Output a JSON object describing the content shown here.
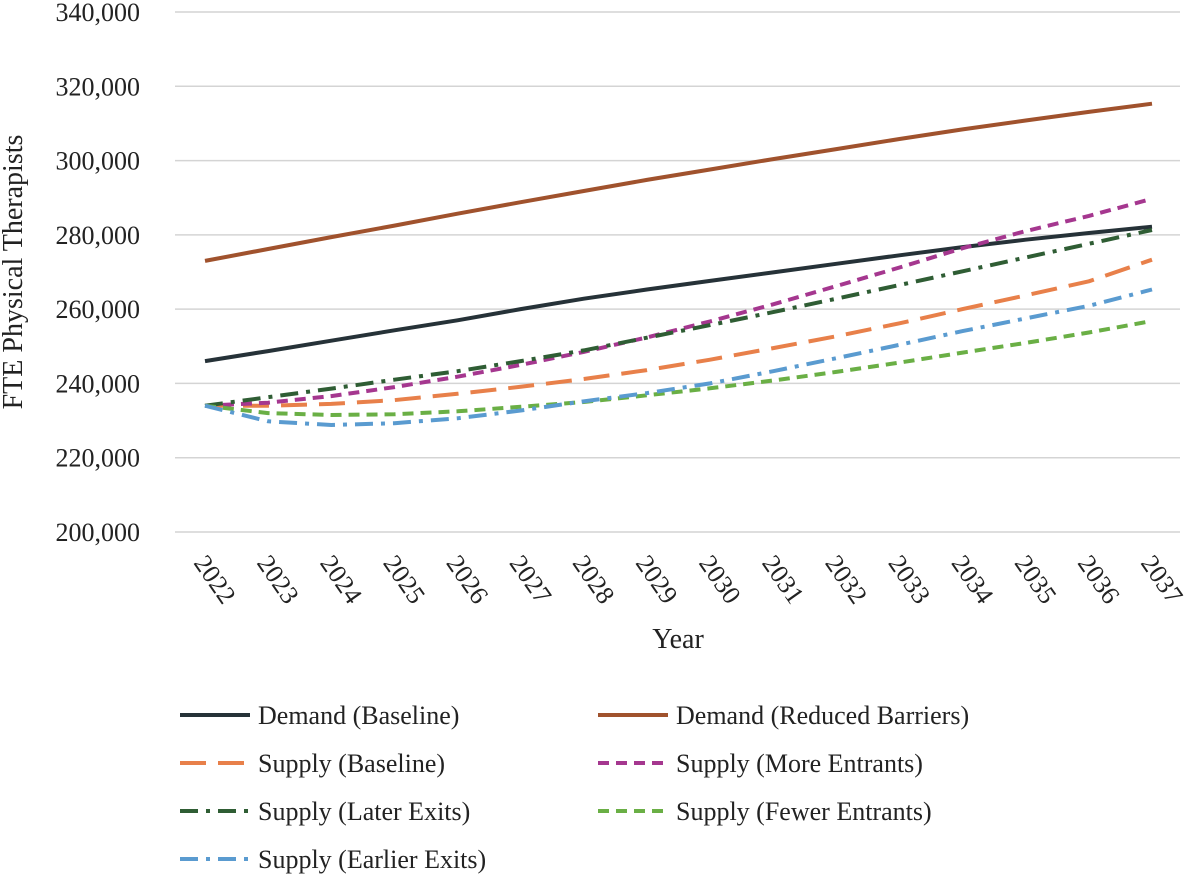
{
  "chart_data": {
    "type": "line",
    "title": "",
    "xlabel": "Year",
    "ylabel": "FTE Physical Therapists",
    "ylim": [
      200000,
      340000
    ],
    "y_ticks": [
      "200,000",
      "220,000",
      "240,000",
      "260,000",
      "280,000",
      "300,000",
      "320,000",
      "340,000"
    ],
    "y_tick_values": [
      200000,
      220000,
      240000,
      260000,
      280000,
      300000,
      320000,
      340000
    ],
    "grid": true,
    "legend_position": "bottom",
    "x": [
      "2022",
      "2023",
      "2024",
      "2025",
      "2026",
      "2027",
      "2028",
      "2029",
      "2030",
      "2031",
      "2032",
      "2033",
      "2034",
      "2035",
      "2036",
      "2037"
    ],
    "series": [
      {
        "name": "Demand (Baseline)",
        "color": "#263238",
        "dash": "solid",
        "values": [
          246000,
          248700,
          251500,
          254300,
          257000,
          260000,
          262800,
          265300,
          267600,
          269900,
          272200,
          274500,
          276700,
          278700,
          280500,
          282200
        ]
      },
      {
        "name": "Demand (Reduced Barriers)",
        "color": "#a0522d",
        "dash": "solid",
        "values": [
          273000,
          276200,
          279400,
          282500,
          285700,
          288800,
          291800,
          294800,
          297600,
          300400,
          303100,
          305800,
          308400,
          310800,
          313100,
          315300
        ]
      },
      {
        "name": "Supply (Baseline)",
        "color": "#e8804a",
        "dash": "long-dash",
        "values": [
          234000,
          234000,
          234500,
          235500,
          237200,
          239100,
          241200,
          243600,
          246400,
          249500,
          252700,
          256200,
          260000,
          263700,
          267500,
          273300
        ]
      },
      {
        "name": "Supply (More Entrants)",
        "color": "#a5378f",
        "dash": "short-dash",
        "values": [
          234000,
          234800,
          236600,
          239000,
          241800,
          245000,
          248500,
          252400,
          256700,
          261300,
          266200,
          271200,
          276400,
          281000,
          285100,
          289700
        ]
      },
      {
        "name": "Supply (Later Exits)",
        "color": "#2f5d34",
        "dash": "dash-dot",
        "values": [
          234000,
          236300,
          238600,
          241000,
          243300,
          246000,
          248900,
          252300,
          255700,
          259200,
          262800,
          266500,
          270200,
          273900,
          277600,
          281300
        ]
      },
      {
        "name": "Supply (Fewer Entrants)",
        "color": "#6aaf45",
        "dash": "short-dash",
        "values": [
          234000,
          232000,
          231500,
          231700,
          232500,
          233700,
          235000,
          236800,
          238700,
          240800,
          243100,
          245600,
          248300,
          250900,
          253700,
          256800
        ]
      },
      {
        "name": "Supply (Earlier Exits)",
        "color": "#5a9bd0",
        "dash": "dash-dot",
        "values": [
          234000,
          229800,
          228800,
          229300,
          230600,
          232700,
          235200,
          237400,
          240000,
          243300,
          246800,
          250400,
          254100,
          257500,
          260900,
          265300
        ]
      }
    ]
  }
}
